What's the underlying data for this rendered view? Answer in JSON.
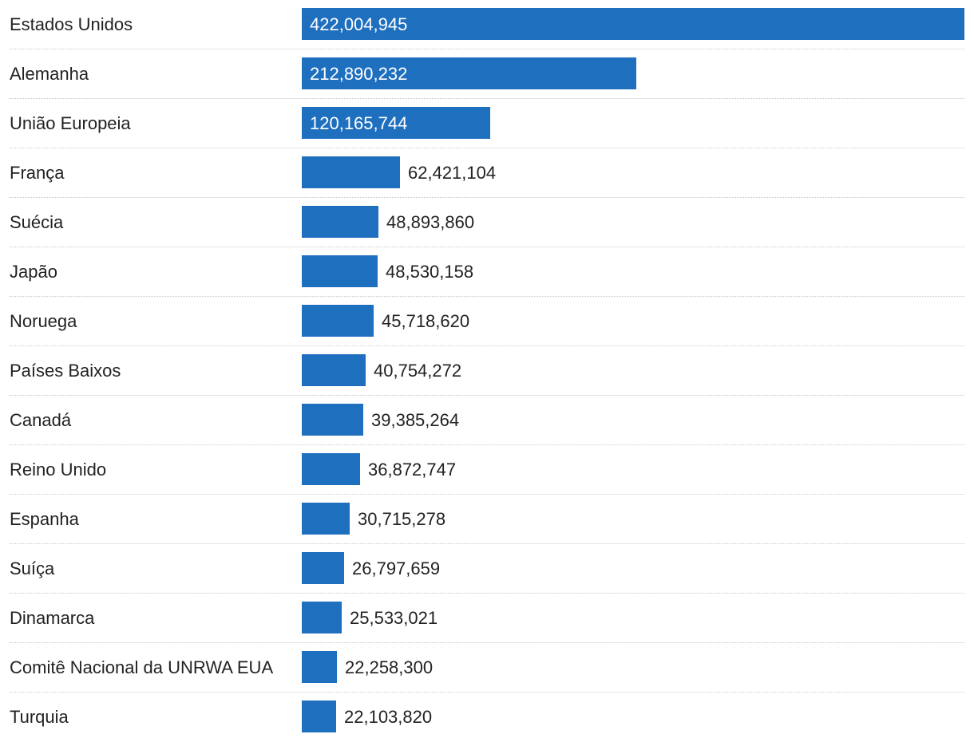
{
  "chart_data": {
    "type": "bar",
    "orientation": "horizontal",
    "categories": [
      "Estados Unidos",
      "Alemanha",
      "União Europeia",
      "França",
      "Suécia",
      "Japão",
      "Noruega",
      "Países Baixos",
      "Canadá",
      "Reino Unido",
      "Espanha",
      "Suíça",
      "Dinamarca",
      "Comitê Nacional da UNRWA EUA",
      "Turquia"
    ],
    "values": [
      422004945,
      212890232,
      120165744,
      62421104,
      48893860,
      48530158,
      45718620,
      40754272,
      39385264,
      36872747,
      30715278,
      26797659,
      25533021,
      22258300,
      22103820
    ],
    "value_labels": [
      "422,004,945",
      "212,890,232",
      "120,165,744",
      "62,421,104",
      "48,893,860",
      "48,530,158",
      "45,718,620",
      "40,754,272",
      "39,385,264",
      "36,872,747",
      "30,715,278",
      "26,797,659",
      "25,533,021",
      "22,258,300",
      "22,103,820"
    ],
    "bar_color": "#1f6fbf",
    "grid": false,
    "row_separators": "dotted"
  }
}
